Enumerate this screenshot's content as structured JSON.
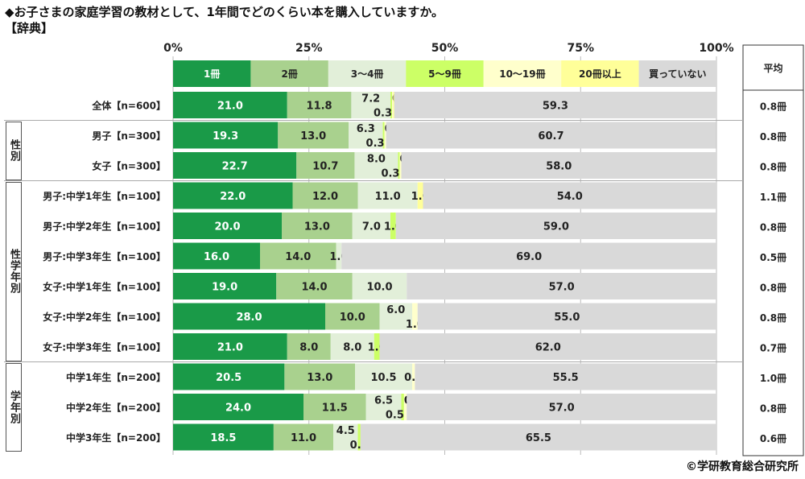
{
  "title": "◆お子さまの家庭学習の教材として、1年間でどのくらい本を購入していますか。",
  "subtitle": "【辞典】",
  "credit": "©学研教育総合研究所",
  "chart_data": {
    "type": "bar",
    "orientation": "horizontal-stacked-100",
    "xlim": [
      0,
      100
    ],
    "xticks": [
      "0%",
      "25%",
      "50%",
      "75%",
      "100%"
    ],
    "series": [
      {
        "name": "1冊",
        "color": "#1a9a48",
        "values": [
          21.0,
          19.3,
          22.7,
          22.0,
          20.0,
          16.0,
          19.0,
          28.0,
          21.0,
          20.5,
          24.0,
          18.5
        ]
      },
      {
        "name": "2冊",
        "color": "#a9d18e",
        "values": [
          11.8,
          13.0,
          10.7,
          12.0,
          13.0,
          14.0,
          14.0,
          10.0,
          8.0,
          13.0,
          11.5,
          11.0
        ]
      },
      {
        "name": "3～4冊",
        "color": "#e2efd9",
        "values": [
          7.2,
          6.3,
          8.0,
          11.0,
          7.0,
          1.0,
          10.0,
          6.0,
          8.0,
          10.5,
          6.5,
          4.5
        ]
      },
      {
        "name": "5～9冊",
        "color": "#ccff66",
        "values": [
          0.3,
          0.3,
          0.3,
          0,
          1.0,
          0,
          0,
          0,
          1.0,
          0,
          0.5,
          0.5
        ]
      },
      {
        "name": "10～19冊",
        "color": "#ffffcc",
        "values": [
          0.2,
          0.3,
          0.3,
          0,
          0,
          0,
          0,
          1.0,
          0,
          0.5,
          0.5,
          0
        ]
      },
      {
        "name": "20冊以上",
        "color": "#ffff99",
        "values": [
          0.2,
          0,
          0,
          1.0,
          0,
          0,
          0,
          0,
          0,
          0,
          0,
          0
        ]
      },
      {
        "name": "買っていない",
        "color": "#d9d9d9",
        "values": [
          59.3,
          60.7,
          58.0,
          54.0,
          59.0,
          69.0,
          57.0,
          55.0,
          62.0,
          55.5,
          57.0,
          65.5
        ]
      }
    ],
    "categories": [
      "全体【n=600】",
      "男子【n=300】",
      "女子【n=300】",
      "男子:中学1年生【n=100】",
      "男子:中学2年生【n=100】",
      "男子:中学3年生【n=100】",
      "女子:中学1年生【n=100】",
      "女子:中学2年生【n=100】",
      "女子:中学3年生【n=100】",
      "中学1年生【n=200】",
      "中学2年生【n=200】",
      "中学3年生【n=200】"
    ],
    "average_header": "平均",
    "averages": [
      "0.8冊",
      "0.8冊",
      "0.8冊",
      "1.1冊",
      "0.8冊",
      "0.5冊",
      "0.8冊",
      "0.8冊",
      "0.7冊",
      "1.0冊",
      "0.8冊",
      "0.6冊"
    ],
    "groups": [
      {
        "label": "性別",
        "rows": [
          1,
          2
        ]
      },
      {
        "label": "性学年別",
        "rows": [
          3,
          8
        ]
      },
      {
        "label": "学年別",
        "rows": [
          9,
          11
        ]
      }
    ]
  }
}
